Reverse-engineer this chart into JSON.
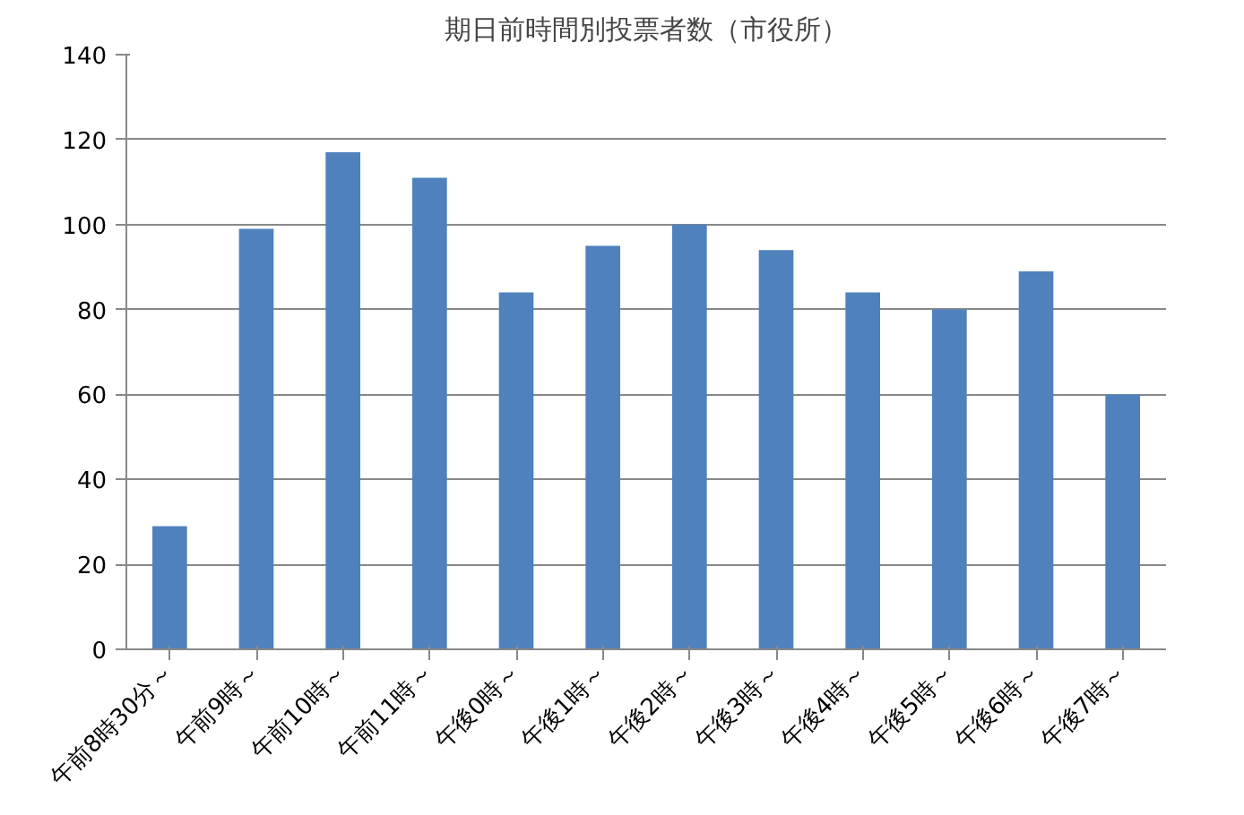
{
  "chart_data": {
    "type": "bar",
    "title": "期日前時間別投票者数（市役所）",
    "categories": [
      "午前8時30分～",
      "午前9時～",
      "午前10時～",
      "午前11時～",
      "午後0時～",
      "午後1時～",
      "午後2時～",
      "午後3時～",
      "午後4時～",
      "午後5時～",
      "午後6時～",
      "午後7時～"
    ],
    "values": [
      29,
      99,
      117,
      111,
      84,
      95,
      100,
      94,
      84,
      80,
      89,
      60
    ],
    "color": "#4f81bd",
    "ylim": [
      0,
      140
    ],
    "yticks": [
      0,
      20,
      40,
      60,
      80,
      100,
      120,
      140
    ],
    "grid": "y"
  }
}
